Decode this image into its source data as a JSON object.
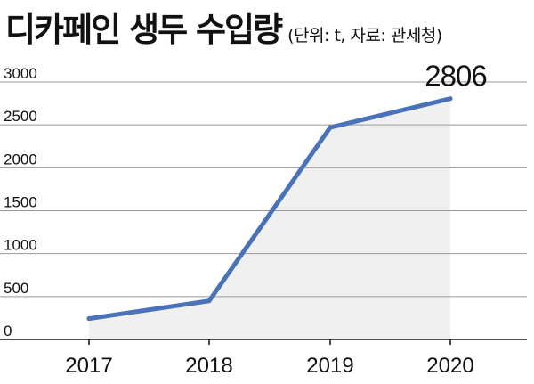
{
  "header": {
    "title": "디카페인 생두 수입량",
    "subtitle": "(단위: t, 자료: 관세청)"
  },
  "chart_data": {
    "type": "area",
    "title": "디카페인 생두 수입량",
    "subtitle": "(단위: t, 자료: 관세청)",
    "xlabel": "",
    "ylabel": "",
    "categories": [
      "2017",
      "2018",
      "2019",
      "2020"
    ],
    "values": [
      243,
      449,
      2470,
      2806
    ],
    "ylim": [
      0,
      3000
    ],
    "yticks": [
      "0",
      "500",
      "1000",
      "1500",
      "2000",
      "2500",
      "3000"
    ],
    "annotations": [
      {
        "category": "2020",
        "text": "2806"
      }
    ],
    "grid": true,
    "colors": {
      "line": "#4a72b8",
      "fill": "#f0f0f0",
      "grid": "#999999",
      "axis": "#111111"
    }
  }
}
